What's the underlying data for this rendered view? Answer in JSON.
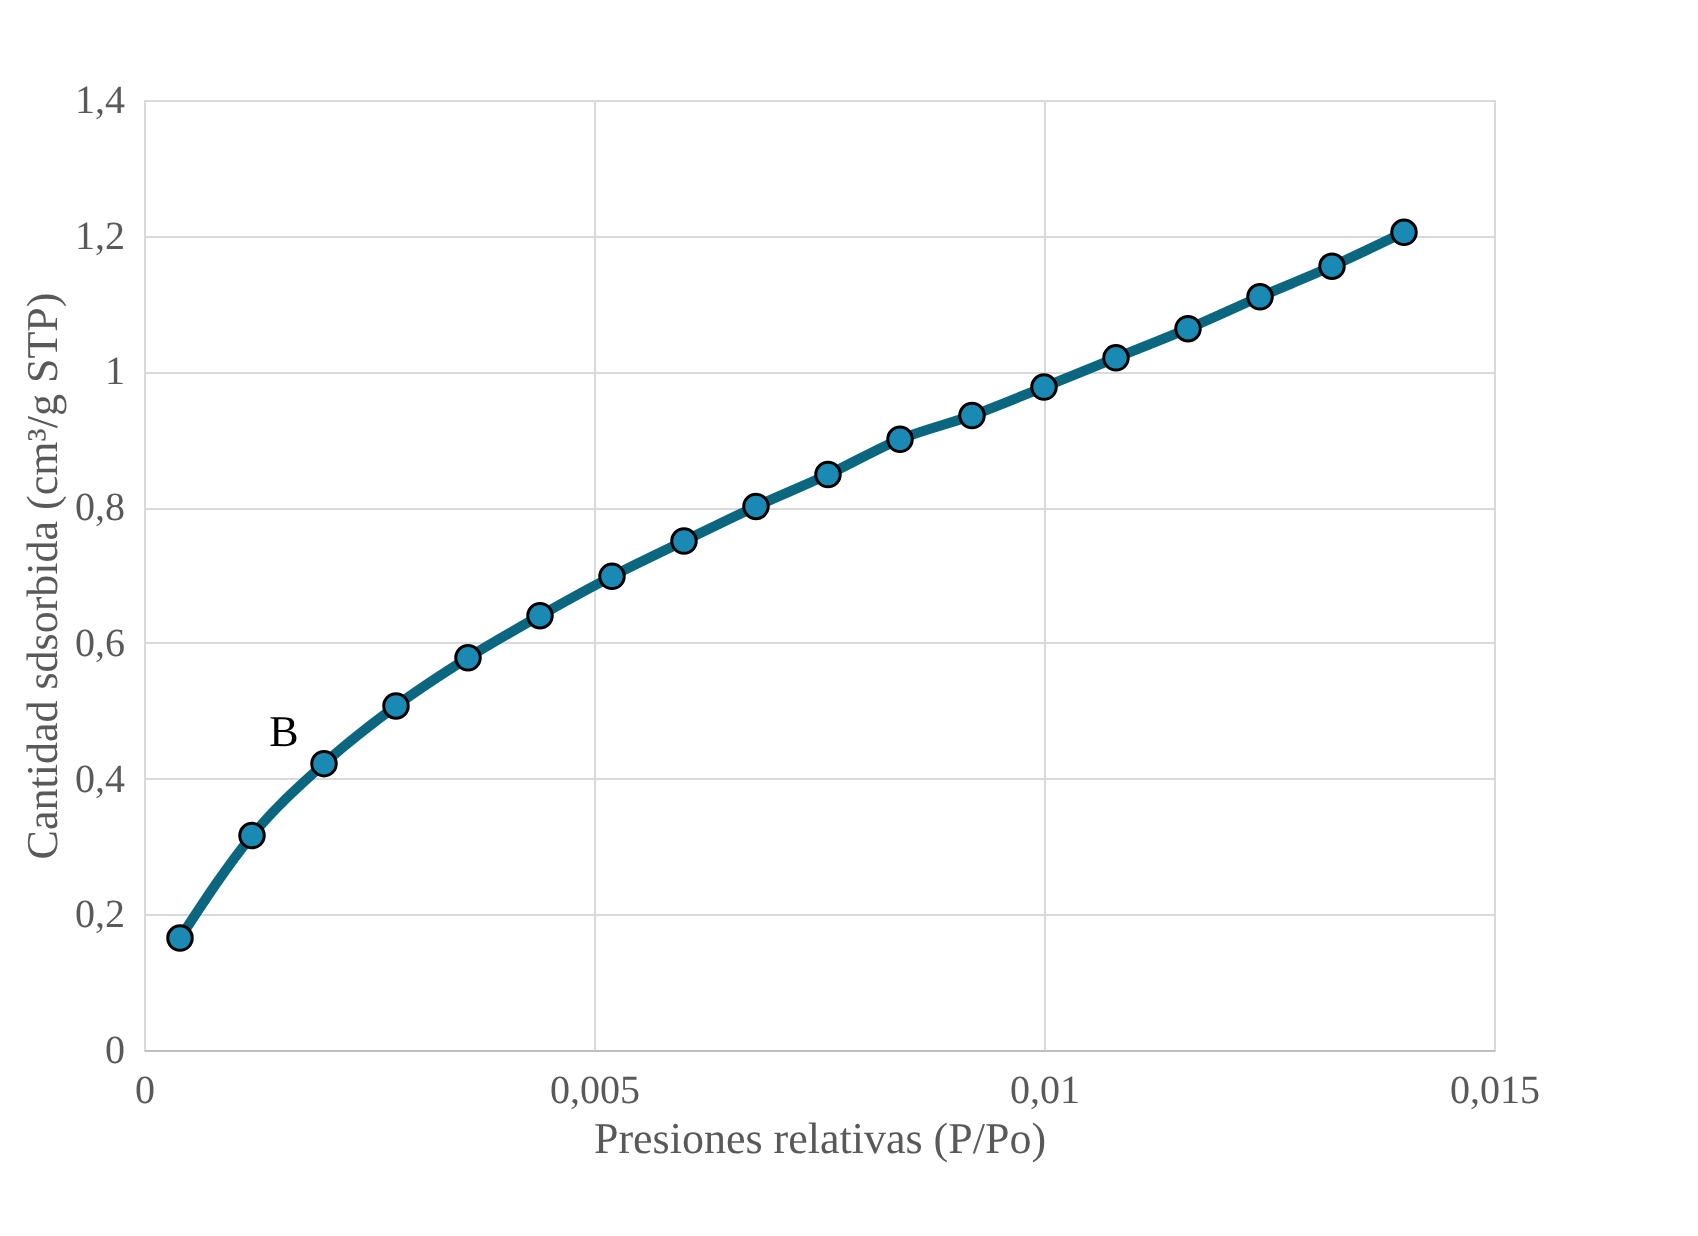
{
  "chart_data": {
    "type": "line",
    "xlabel": "Presiones relativas (P/Po)",
    "ylabel": "Cantidad sdsorbida (cm³/g STP)",
    "x": [
      0.0004,
      0.0012,
      0.002,
      0.0028,
      0.0036,
      0.0044,
      0.0052,
      0.006,
      0.0068,
      0.0076,
      0.0084,
      0.0092,
      0.01,
      0.0108,
      0.0116,
      0.0124,
      0.0132,
      0.014
    ],
    "series": [
      {
        "color": "#0b6680",
        "values": [
          0.165,
          0.316,
          0.422,
          0.507,
          0.578,
          0.64,
          0.698,
          0.75,
          0.801,
          0.848,
          0.9,
          0.935,
          0.977,
          1.02,
          1.063,
          1.11,
          1.155,
          1.205
        ]
      }
    ],
    "marker": "circle",
    "line_style": "solid",
    "grid": true,
    "xlim": [
      0,
      0.015
    ],
    "xticks": [
      {
        "value": 0,
        "label": "0"
      },
      {
        "value": 0.005,
        "label": "0,005"
      },
      {
        "value": 0.01,
        "label": "0,01"
      },
      {
        "value": 0.015,
        "label": "0,015"
      }
    ],
    "ylim": [
      0,
      1.4
    ],
    "yticks": [
      {
        "value": 0,
        "label": "0"
      },
      {
        "value": 0.2,
        "label": "0,2"
      },
      {
        "value": 0.4,
        "label": "0,4"
      },
      {
        "value": 0.6,
        "label": "0,6"
      },
      {
        "value": 0.8,
        "label": "0,8"
      },
      {
        "value": 1,
        "label": "1"
      },
      {
        "value": 1.2,
        "label": "1,2"
      },
      {
        "value": 1.4,
        "label": "1,4"
      }
    ],
    "annotations": [
      {
        "text": "B",
        "x": 0.002,
        "y": 0.422
      }
    ]
  }
}
